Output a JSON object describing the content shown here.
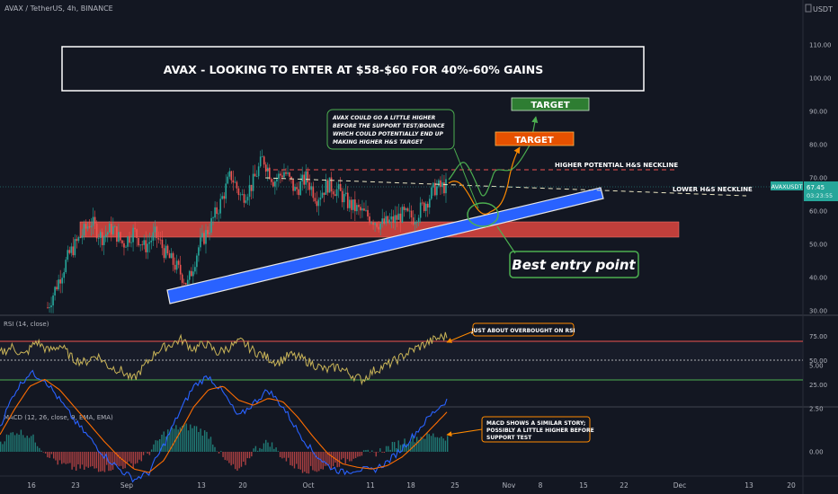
{
  "header": {
    "symbol": "AVAX / TetherUS, 4h, BINANCE",
    "currency": "USDT"
  },
  "title_box": {
    "text": "AVAX - LOOKING TO ENTER AT $58-$60 FOR 40%-60% GAINS"
  },
  "price_axis": {
    "ticks": [
      "110.00",
      "100.00",
      "90.00",
      "80.00",
      "70.00",
      "60.00",
      "50.00",
      "40.00",
      "30.00"
    ],
    "last_price_label": "AVAXUSDT",
    "last_price": "67.45",
    "countdown": "03:23:55"
  },
  "annotations": {
    "note": [
      "AVAX COULD GO A LITTLE HIGHER",
      "BEFORE THE SUPPORT TEST/BOUNCE",
      "WHICH COULD POTENTIALLY END UP",
      "MAKING HIGHER H&S TARGET"
    ],
    "target_green": "TARGET",
    "target_orange": "TARGET",
    "higher_neckline": "HIGHER POTENTIAL H&S NECKLINE",
    "lower_neckline": "LOWER H&S NECKLINE",
    "best_entry": "Best entry point",
    "rsi_note": "JUST ABOUT OVERBOUGHT ON RSI",
    "macd_note": [
      "MACD SHOWS A SIMILAR STORY;",
      "POSSIBLY A LITTLE HIGHER BEFORE",
      "SUPPORT TEST"
    ]
  },
  "rsi": {
    "title": "RSI (14, close)",
    "ticks": [
      "75.00",
      "50.00",
      "25.00"
    ]
  },
  "macd": {
    "title": "MACD (12, 26, close, 9, EMA, EMA)",
    "ticks": [
      "5.00",
      "2.50",
      "0.00"
    ]
  },
  "time_axis": {
    "labels": [
      "16",
      "23",
      "Sep",
      "13",
      "20",
      "Oct",
      "11",
      "18",
      "25",
      "Nov",
      "8",
      "15",
      "22",
      "Dec",
      "13",
      "20"
    ]
  },
  "colors": {
    "background": "#131722",
    "bull": "#26a69a",
    "bear": "#ef5350",
    "support_band": "#2962ff",
    "resistance_zone": "#e0463f",
    "rsi_line": "#c9b458",
    "macd_line": "#2962ff",
    "signal_line": "#ff6d00",
    "orange_path": "#ff8a00",
    "green_path": "#4caf50"
  },
  "chart_data": [
    {
      "type": "candlestick",
      "title": "AVAX / TetherUS, 4h, BINANCE",
      "ylim": [
        30,
        110
      ],
      "path": [
        {
          "d": "Aug 12",
          "c": 31
        },
        {
          "d": "Aug 14",
          "c": 39
        },
        {
          "d": "Aug 16",
          "c": 47
        },
        {
          "d": "Aug 19",
          "c": 52
        },
        {
          "d": "Aug 21",
          "c": 57
        },
        {
          "d": "Aug 23",
          "c": 52
        },
        {
          "d": "Aug 25",
          "c": 55
        },
        {
          "d": "Aug 27",
          "c": 50
        },
        {
          "d": "Aug 29",
          "c": 54
        },
        {
          "d": "Aug 31",
          "c": 49
        },
        {
          "d": "Sep 02",
          "c": 53
        },
        {
          "d": "Sep 04",
          "c": 47
        },
        {
          "d": "Sep 06",
          "c": 43
        },
        {
          "d": "Sep 07",
          "c": 38
        },
        {
          "d": "Sep 08",
          "c": 49
        },
        {
          "d": "Sep 10",
          "c": 55
        },
        {
          "d": "Sep 12",
          "c": 62
        },
        {
          "d": "Sep 14",
          "c": 71
        },
        {
          "d": "Sep 16",
          "c": 64
        },
        {
          "d": "Sep 18",
          "c": 68
        },
        {
          "d": "Sep 20",
          "c": 76
        },
        {
          "d": "Sep 21",
          "c": 69
        },
        {
          "d": "Sep 23",
          "c": 72
        },
        {
          "d": "Sep 25",
          "c": 66
        },
        {
          "d": "Sep 27",
          "c": 70
        },
        {
          "d": "Sep 29",
          "c": 64
        },
        {
          "d": "Oct 01",
          "c": 68
        },
        {
          "d": "Oct 03",
          "c": 66
        },
        {
          "d": "Oct 05",
          "c": 62
        },
        {
          "d": "Oct 07",
          "c": 60
        },
        {
          "d": "Oct 09",
          "c": 58
        },
        {
          "d": "Oct 11",
          "c": 56
        },
        {
          "d": "Oct 13",
          "c": 57
        },
        {
          "d": "Oct 15",
          "c": 59
        },
        {
          "d": "Oct 17",
          "c": 58
        },
        {
          "d": "Oct 19",
          "c": 62
        },
        {
          "d": "Oct 21",
          "c": 67
        },
        {
          "d": "Oct 22",
          "c": 67.45
        }
      ],
      "series": [
        {
          "name": "AVAXUSDT",
          "last": 67.45
        }
      ]
    },
    {
      "type": "line",
      "title": "RSI (14, close)",
      "ylim": [
        10,
        100
      ],
      "series": [
        {
          "name": "RSI",
          "values": [
            58,
            64,
            55,
            70,
            60,
            66,
            52,
            48,
            56,
            44,
            40,
            30,
            45,
            60,
            66,
            72,
            62,
            68,
            58,
            64,
            70,
            60,
            54,
            48,
            56,
            52,
            46,
            40,
            44,
            36,
            30,
            40,
            45,
            52,
            60,
            66,
            72,
            76
          ]
        }
      ],
      "levels": [
        70,
        50,
        30
      ]
    },
    {
      "type": "line",
      "title": "MACD (12, 26, close, 9, EMA, EMA)",
      "ylim": [
        -2,
        5.5
      ],
      "series": [
        {
          "name": "MACD",
          "values": [
            1.5,
            3.5,
            4.6,
            4.2,
            3.0,
            1.8,
            0.8,
            -0.2,
            -1.0,
            -1.6,
            -1.2,
            0.4,
            2.2,
            3.8,
            4.4,
            3.4,
            2.0,
            2.8,
            3.6,
            2.6,
            1.2,
            0.0,
            -0.8,
            -1.2,
            -1.0,
            -1.1,
            -0.6,
            0.2,
            1.2,
            2.2,
            3.0
          ]
        },
        {
          "name": "Signal",
          "values": [
            1.0,
            2.5,
            3.8,
            4.2,
            3.6,
            2.6,
            1.6,
            0.6,
            -0.3,
            -1.0,
            -1.2,
            -0.5,
            1.0,
            2.6,
            3.6,
            3.8,
            3.0,
            2.7,
            3.1,
            2.9,
            2.0,
            0.9,
            -0.1,
            -0.7,
            -0.9,
            -1.0,
            -0.8,
            -0.3,
            0.5,
            1.4,
            2.3
          ]
        }
      ]
    }
  ]
}
